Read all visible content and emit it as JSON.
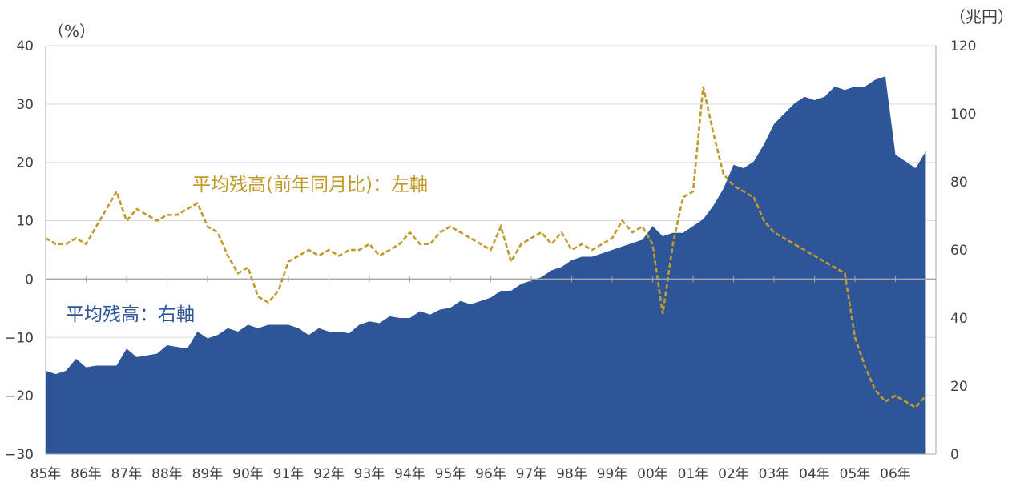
{
  "chart_data": {
    "type": "area+line",
    "left_unit": "（%）",
    "right_unit": "（兆円）",
    "left_ylim": [
      -30,
      40
    ],
    "left_ticks": [
      "40",
      "30",
      "20",
      "10",
      "0",
      "−10",
      "−20",
      "−30"
    ],
    "right_ylim": [
      0,
      120
    ],
    "right_ticks": [
      "120",
      "100",
      "80",
      "60",
      "40",
      "20",
      "0"
    ],
    "x_ticks": [
      "85年",
      "86年",
      "87年",
      "88年",
      "89年",
      "90年",
      "91年",
      "92年",
      "93年",
      "94年",
      "95年",
      "96年",
      "97年",
      "98年",
      "99年",
      "00年",
      "01年",
      "02年",
      "03年",
      "04年",
      "05年",
      "06年"
    ],
    "grid": true,
    "colors": {
      "area": "#2e5597",
      "line": "#c09a2a",
      "grid": "#d9d9d9",
      "axis": "#a6a6a6"
    },
    "series": [
      {
        "name": "平均残高：右軸",
        "kind": "area",
        "axis": "right",
        "points": [
          [
            1985.0,
            24.5
          ],
          [
            1985.25,
            23.5
          ],
          [
            1985.5,
            24.5
          ],
          [
            1985.75,
            28
          ],
          [
            1986.0,
            25.5
          ],
          [
            1986.25,
            26
          ],
          [
            1986.5,
            26
          ],
          [
            1986.75,
            26
          ],
          [
            1987.0,
            31
          ],
          [
            1987.25,
            28.5
          ],
          [
            1987.5,
            29
          ],
          [
            1987.75,
            29.5
          ],
          [
            1988.0,
            32
          ],
          [
            1988.25,
            31.5
          ],
          [
            1988.5,
            31
          ],
          [
            1988.75,
            36
          ],
          [
            1989.0,
            34
          ],
          [
            1989.25,
            35
          ],
          [
            1989.5,
            37
          ],
          [
            1989.75,
            36
          ],
          [
            1990.0,
            38
          ],
          [
            1990.25,
            37
          ],
          [
            1990.5,
            38
          ],
          [
            1990.75,
            38
          ],
          [
            1991.0,
            38
          ],
          [
            1991.25,
            37
          ],
          [
            1991.5,
            35
          ],
          [
            1991.75,
            37
          ],
          [
            1992.0,
            36
          ],
          [
            1992.25,
            36
          ],
          [
            1992.5,
            35.5
          ],
          [
            1992.75,
            38
          ],
          [
            1993.0,
            39
          ],
          [
            1993.25,
            38.5
          ],
          [
            1993.5,
            40.5
          ],
          [
            1993.75,
            40
          ],
          [
            1994.0,
            40
          ],
          [
            1994.25,
            42
          ],
          [
            1994.5,
            41
          ],
          [
            1994.75,
            42.5
          ],
          [
            1995.0,
            43
          ],
          [
            1995.25,
            45
          ],
          [
            1995.5,
            44
          ],
          [
            1995.75,
            45
          ],
          [
            1996.0,
            46
          ],
          [
            1996.25,
            48
          ],
          [
            1996.5,
            48
          ],
          [
            1996.75,
            50
          ],
          [
            1997.0,
            51
          ],
          [
            1997.25,
            52
          ],
          [
            1997.5,
            54
          ],
          [
            1997.75,
            55
          ],
          [
            1998.0,
            57
          ],
          [
            1998.25,
            58
          ],
          [
            1998.5,
            58
          ],
          [
            1998.75,
            59
          ],
          [
            1999.0,
            60
          ],
          [
            1999.25,
            61
          ],
          [
            1999.5,
            62
          ],
          [
            1999.75,
            63
          ],
          [
            2000.0,
            67
          ],
          [
            2000.25,
            64
          ],
          [
            2000.5,
            65
          ],
          [
            2000.75,
            65
          ],
          [
            2001.0,
            67
          ],
          [
            2001.25,
            69
          ],
          [
            2001.5,
            73
          ],
          [
            2001.75,
            78
          ],
          [
            2002.0,
            85
          ],
          [
            2002.25,
            84
          ],
          [
            2002.5,
            86
          ],
          [
            2002.75,
            91
          ],
          [
            2003.0,
            97
          ],
          [
            2003.25,
            100
          ],
          [
            2003.5,
            103
          ],
          [
            2003.75,
            105
          ],
          [
            2004.0,
            104
          ],
          [
            2004.25,
            105
          ],
          [
            2004.5,
            108
          ],
          [
            2004.75,
            107
          ],
          [
            2005.0,
            108
          ],
          [
            2005.25,
            108
          ],
          [
            2005.5,
            110
          ],
          [
            2005.75,
            111
          ],
          [
            2006.0,
            88
          ],
          [
            2006.25,
            86
          ],
          [
            2006.5,
            84
          ],
          [
            2006.75,
            89
          ]
        ]
      },
      {
        "name": "平均残高（前年同月比）：左軸",
        "kind": "line",
        "axis": "left",
        "points": [
          [
            1985.0,
            7
          ],
          [
            1985.25,
            6
          ],
          [
            1985.5,
            6
          ],
          [
            1985.75,
            7
          ],
          [
            1986.0,
            6
          ],
          [
            1986.25,
            9
          ],
          [
            1986.5,
            12
          ],
          [
            1986.75,
            15
          ],
          [
            1987.0,
            10
          ],
          [
            1987.25,
            12
          ],
          [
            1987.5,
            11
          ],
          [
            1987.75,
            10
          ],
          [
            1988.0,
            11
          ],
          [
            1988.25,
            11
          ],
          [
            1988.5,
            12
          ],
          [
            1988.75,
            13
          ],
          [
            1989.0,
            9
          ],
          [
            1989.25,
            8
          ],
          [
            1989.5,
            4
          ],
          [
            1989.75,
            1
          ],
          [
            1990.0,
            2
          ],
          [
            1990.25,
            -3
          ],
          [
            1990.5,
            -4
          ],
          [
            1990.75,
            -2
          ],
          [
            1991.0,
            3
          ],
          [
            1991.25,
            4
          ],
          [
            1991.5,
            5
          ],
          [
            1991.75,
            4
          ],
          [
            1992.0,
            5
          ],
          [
            1992.25,
            4
          ],
          [
            1992.5,
            5
          ],
          [
            1992.75,
            5
          ],
          [
            1993.0,
            6
          ],
          [
            1993.25,
            4
          ],
          [
            1993.5,
            5
          ],
          [
            1993.75,
            6
          ],
          [
            1994.0,
            8
          ],
          [
            1994.25,
            6
          ],
          [
            1994.5,
            6
          ],
          [
            1994.75,
            8
          ],
          [
            1995.0,
            9
          ],
          [
            1995.25,
            8
          ],
          [
            1995.5,
            7
          ],
          [
            1995.75,
            6
          ],
          [
            1996.0,
            5
          ],
          [
            1996.25,
            9
          ],
          [
            1996.5,
            3
          ],
          [
            1996.75,
            6
          ],
          [
            1997.0,
            7
          ],
          [
            1997.25,
            8
          ],
          [
            1997.5,
            6
          ],
          [
            1997.75,
            8
          ],
          [
            1998.0,
            5
          ],
          [
            1998.25,
            6
          ],
          [
            1998.5,
            5
          ],
          [
            1998.75,
            6
          ],
          [
            1999.0,
            7
          ],
          [
            1999.25,
            10
          ],
          [
            1999.5,
            8
          ],
          [
            1999.75,
            9
          ],
          [
            2000.0,
            6
          ],
          [
            2000.25,
            -6
          ],
          [
            2000.5,
            6
          ],
          [
            2000.75,
            14
          ],
          [
            2001.0,
            15
          ],
          [
            2001.25,
            33
          ],
          [
            2001.5,
            25
          ],
          [
            2001.75,
            18
          ],
          [
            2002.0,
            16
          ],
          [
            2002.25,
            15
          ],
          [
            2002.5,
            14
          ],
          [
            2002.75,
            10
          ],
          [
            2003.0,
            8
          ],
          [
            2003.25,
            7
          ],
          [
            2003.5,
            6
          ],
          [
            2003.75,
            5
          ],
          [
            2004.0,
            4
          ],
          [
            2004.25,
            3
          ],
          [
            2004.5,
            2
          ],
          [
            2004.75,
            1
          ],
          [
            2005.0,
            -10
          ],
          [
            2005.25,
            -15
          ],
          [
            2005.5,
            -19
          ],
          [
            2005.75,
            -21
          ],
          [
            2006.0,
            -20
          ],
          [
            2006.25,
            -21
          ],
          [
            2006.5,
            -22
          ],
          [
            2006.75,
            -20
          ]
        ]
      }
    ],
    "annotations": {
      "line_label": "平均残高(前年同月比)：左軸",
      "area_label": "平均残高：右軸"
    }
  }
}
